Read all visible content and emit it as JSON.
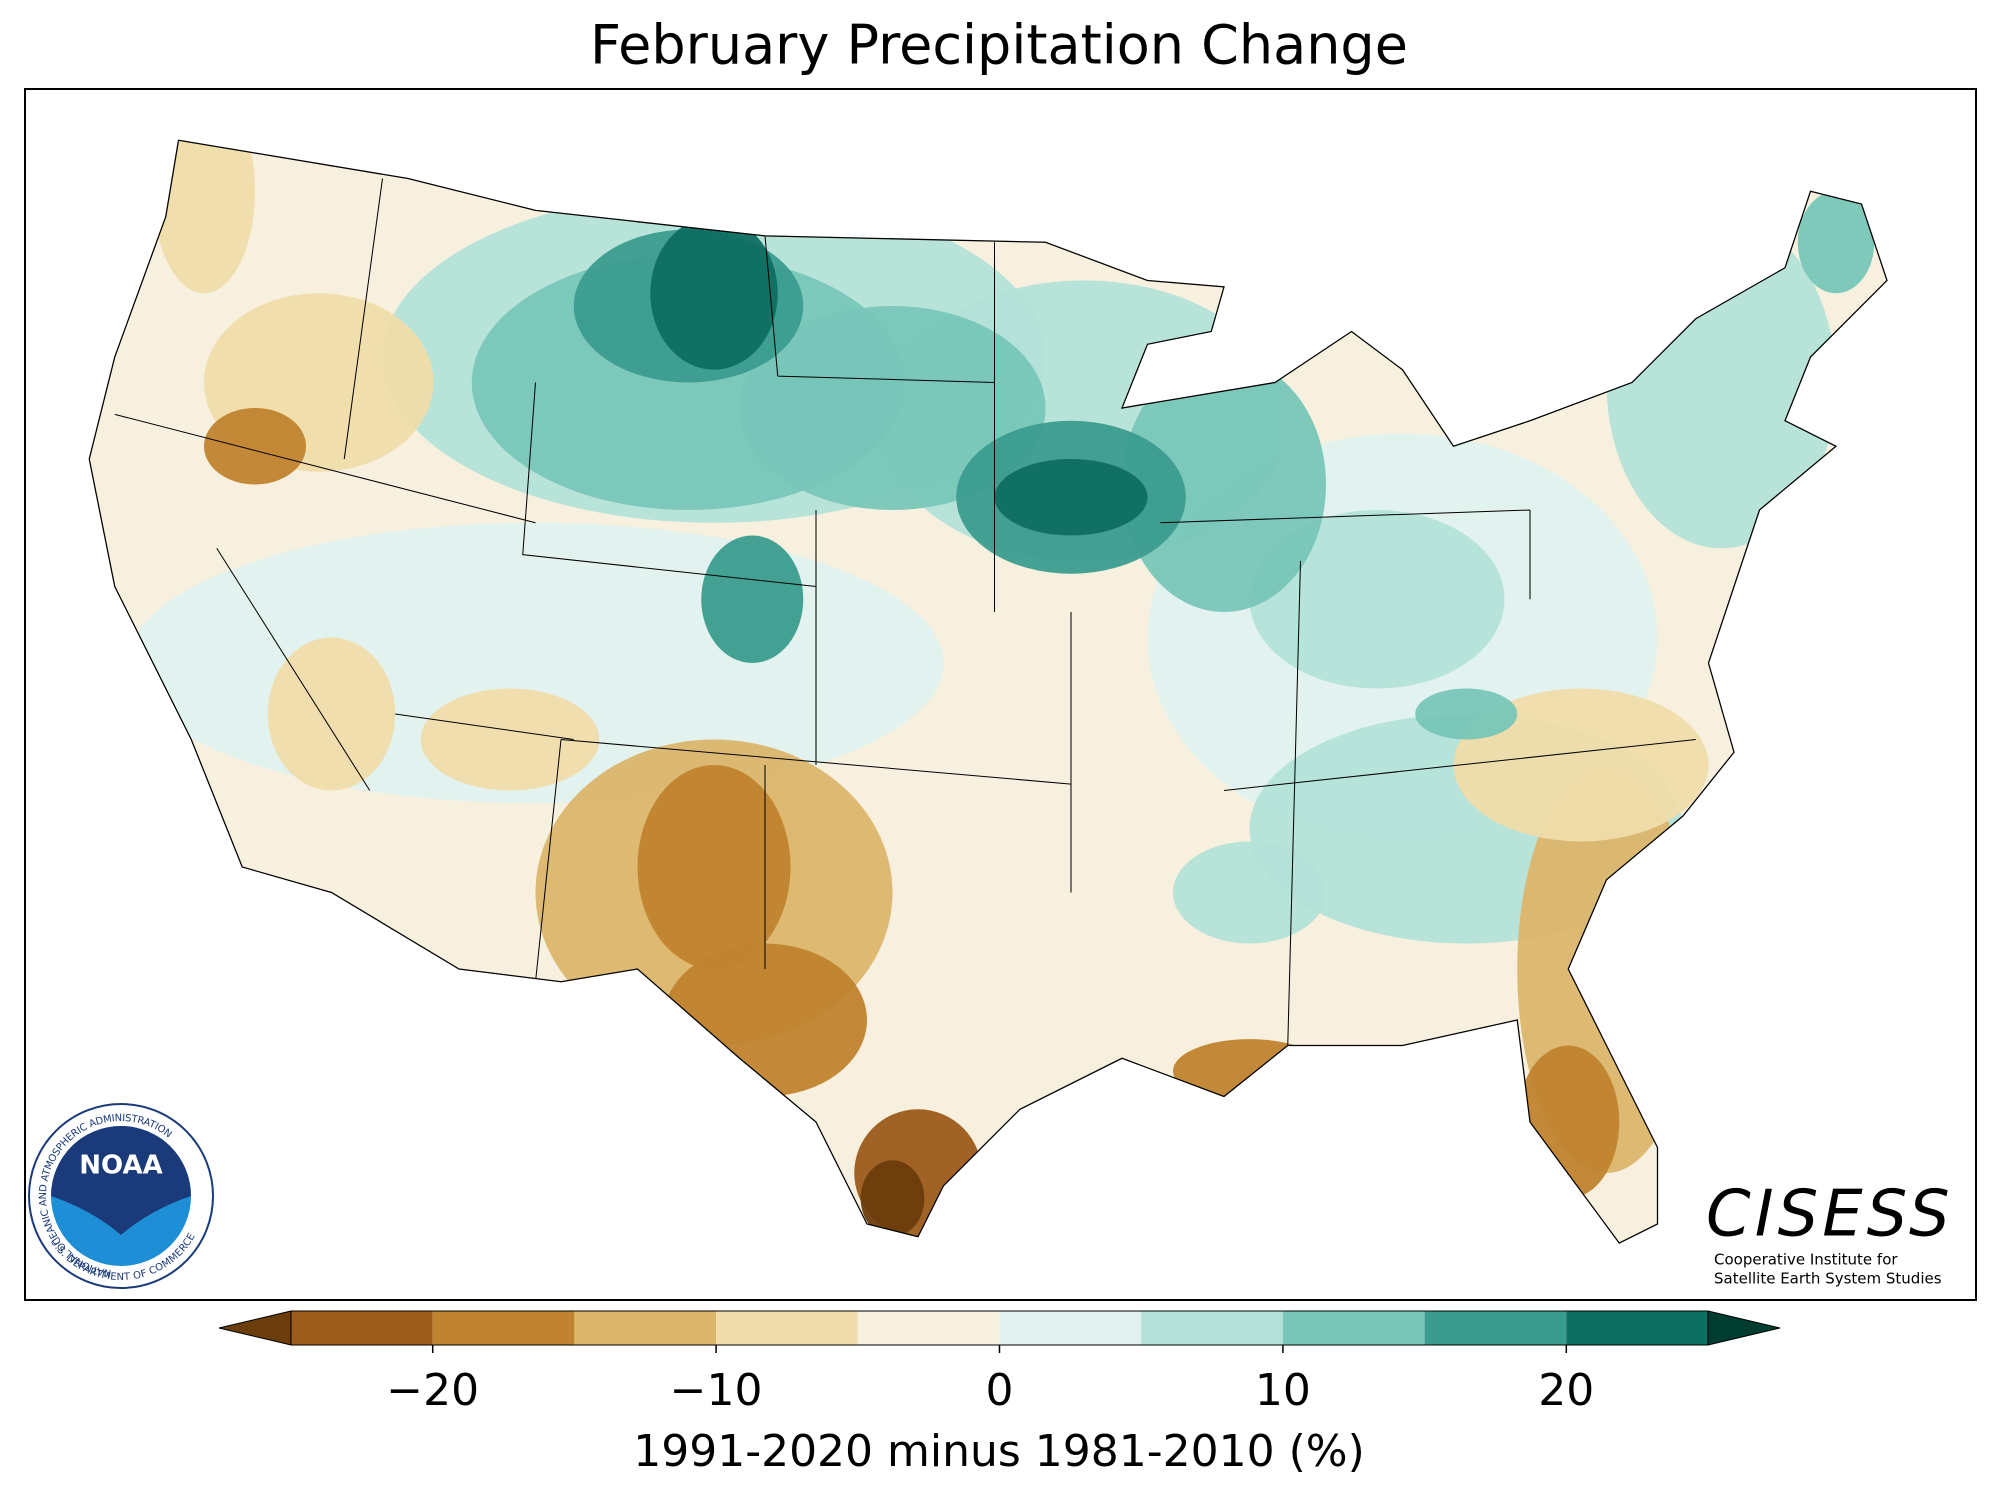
{
  "title": "February Precipitation Change",
  "colorbar": {
    "label": "1991-2020 minus 1981-2010 (%)",
    "xlim": [
      -25,
      25
    ],
    "bounds": [
      -25,
      -20,
      -15,
      -10,
      -5,
      0,
      5,
      10,
      15,
      20,
      25
    ],
    "colors": [
      "#9c5b1a",
      "#c0832f",
      "#dbb56c",
      "#f0dcaa",
      "#f7f0df",
      "#e0f1ee",
      "#b3e1d8",
      "#78c6b8",
      "#3a9c8e",
      "#0f6e62"
    ],
    "extend_colors": [
      "#6b3d0c",
      "#003c30"
    ],
    "ticks": [
      {
        "value": -20,
        "label": "−20"
      },
      {
        "value": -10,
        "label": "−10"
      },
      0,
      10,
      20
    ]
  },
  "logos": {
    "noaa": {
      "name": "NOAA",
      "ring_top": "NATIONAL OCEANIC AND ATMOSPHERIC ADMINISTRATION",
      "ring_bottom": "U.S. DEPARTMENT OF COMMERCE"
    },
    "cisess": {
      "name": "CISESS",
      "line1": "Cooperative Institute for",
      "line2": "Satellite Earth System Studies"
    }
  }
}
